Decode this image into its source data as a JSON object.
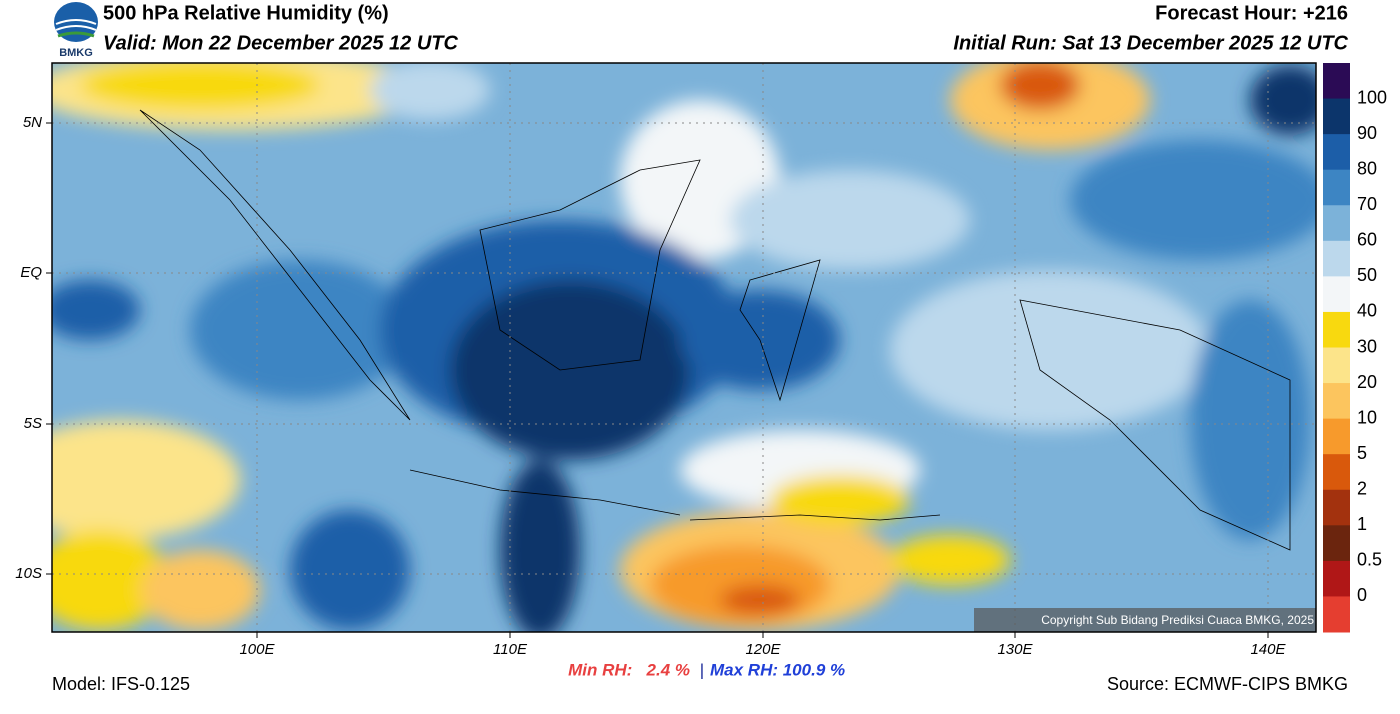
{
  "header": {
    "logo_text": "BMKG",
    "title": "500 hPa Relative Humidity (%)",
    "valid": "Valid: Mon 22 December 2025 12 UTC",
    "forecast_hour": "Forecast Hour: +216",
    "initial_run": "Initial Run: Sat 13 December 2025 12 UTC"
  },
  "map": {
    "lat_labels": [
      "5N",
      "EQ",
      "5S",
      "10S"
    ],
    "lon_labels": [
      "100E",
      "110E",
      "120E",
      "130E",
      "140E"
    ],
    "copyright": "Copyright Sub Bidang Prediksi Cuaca BMKG, 2025"
  },
  "colorbar": {
    "labels": [
      "100",
      "90",
      "80",
      "70",
      "60",
      "50",
      "40",
      "30",
      "20",
      "10",
      "5",
      "2",
      "1",
      "0.5",
      "0"
    ],
    "colors": [
      "#2b0b55",
      "#0c356b",
      "#1c5ea8",
      "#3d85c3",
      "#7cb2d9",
      "#bcd8ec",
      "#f3f6f8",
      "#f8d90f",
      "#fce48a",
      "#fcc55e",
      "#f79a2c",
      "#d9590c",
      "#a3320e",
      "#6b250e",
      "#b01717",
      "#e53e30"
    ]
  },
  "footer": {
    "model": "Model: IFS-0.125",
    "min_rh": "Min RH:   2.4 %",
    "separator": "|",
    "max_rh": "Max RH: 100.9 %",
    "source": "Source: ECMWF-CIPS BMKG"
  }
}
